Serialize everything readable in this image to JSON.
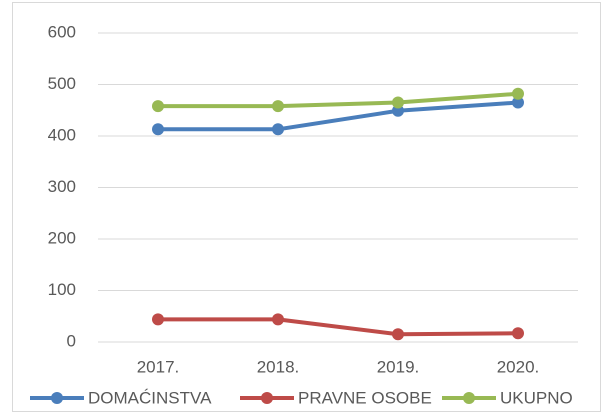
{
  "chart_data": {
    "type": "line",
    "categories": [
      "2017.",
      "2018.",
      "2019.",
      "2020."
    ],
    "series": [
      {
        "name": "DOMAĆINSTVA",
        "color": "#4a7ebb",
        "values": [
          413,
          413,
          449,
          465
        ]
      },
      {
        "name": "PRAVNE OSOBE",
        "color": "#be4b48",
        "values": [
          44,
          44,
          15,
          17
        ]
      },
      {
        "name": "UKUPNO",
        "color": "#98b954",
        "values": [
          458,
          458,
          465,
          482
        ]
      }
    ],
    "ylim": [
      0,
      600
    ],
    "yticks": [
      0,
      100,
      200,
      300,
      400,
      500,
      600
    ],
    "grid": true,
    "legend": "bottom"
  }
}
